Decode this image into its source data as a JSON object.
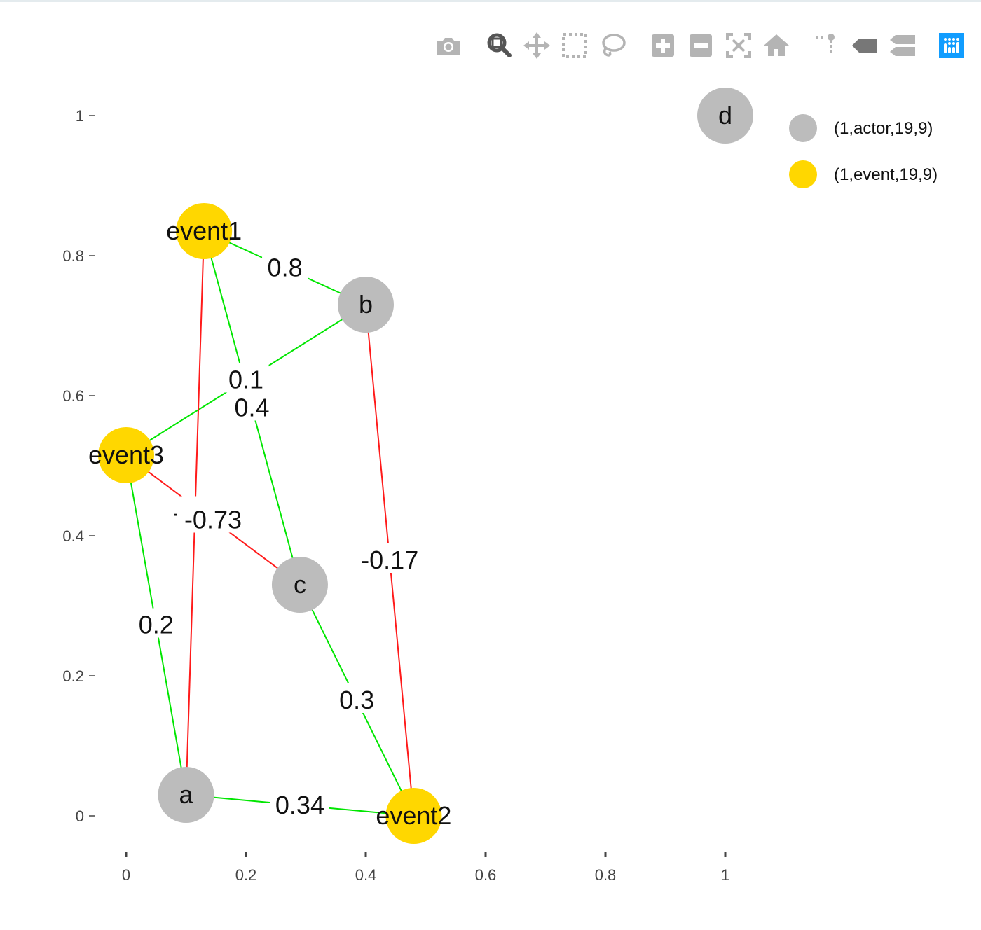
{
  "modebar": {
    "buttons": [
      {
        "name": "camera-icon"
      },
      {
        "name": "zoom-icon"
      },
      {
        "name": "pan-icon"
      },
      {
        "name": "box-select-icon"
      },
      {
        "name": "lasso-select-icon"
      },
      {
        "name": "zoom-in-icon"
      },
      {
        "name": "zoom-out-icon"
      },
      {
        "name": "autoscale-icon"
      },
      {
        "name": "home-icon"
      },
      {
        "name": "spike-lines-icon"
      },
      {
        "name": "hover-closest-icon"
      },
      {
        "name": "hover-compare-icon"
      },
      {
        "name": "plotly-logo-icon"
      }
    ]
  },
  "chart_data": {
    "type": "scatter",
    "title": "",
    "xlabel": "",
    "ylabel": "",
    "xlim": [
      -0.08,
      1.08
    ],
    "ylim": [
      -0.05,
      1.05
    ],
    "x_ticks": [
      0,
      0.2,
      0.4,
      0.6,
      0.8,
      1
    ],
    "x_tick_labels": [
      "0",
      "0.2",
      "0.4",
      "0.6",
      "0.8",
      "1"
    ],
    "y_ticks": [
      0,
      0.2,
      0.4,
      0.6,
      0.8,
      1
    ],
    "y_tick_labels": [
      "0",
      "0.2",
      "0.4",
      "0.6",
      "0.8",
      "1"
    ],
    "grid": false,
    "legend_position": "top-right",
    "colors": {
      "actor": "#bcbcbc",
      "event": "#ffd700",
      "positive_edge": "#00e600",
      "negative_edge": "#ff1a1a"
    },
    "series": [
      {
        "name": "(1,actor,19,9)",
        "color": "#bcbcbc"
      },
      {
        "name": "(1,event,19,9)",
        "color": "#ffd700"
      }
    ],
    "nodes": [
      {
        "id": "a",
        "label": "a",
        "group": "(1,actor,19,9)",
        "x": 0.1,
        "y": 0.03
      },
      {
        "id": "b",
        "label": "b",
        "group": "(1,actor,19,9)",
        "x": 0.4,
        "y": 0.73
      },
      {
        "id": "c",
        "label": "c",
        "group": "(1,actor,19,9)",
        "x": 0.29,
        "y": 0.33
      },
      {
        "id": "d",
        "label": "d",
        "group": "(1,actor,19,9)",
        "x": 1.0,
        "y": 1.0
      },
      {
        "id": "event1",
        "label": "event1",
        "group": "(1,event,19,9)",
        "x": 0.13,
        "y": 0.835
      },
      {
        "id": "event2",
        "label": "event2",
        "group": "(1,event,19,9)",
        "x": 0.48,
        "y": 0.0
      },
      {
        "id": "event3",
        "label": "event3",
        "group": "(1,event,19,9)",
        "x": 0.0,
        "y": 0.515
      }
    ],
    "edges": [
      {
        "source": "event1",
        "target": "b",
        "weight": "0.8",
        "sign": "positive"
      },
      {
        "source": "b",
        "target": "event3",
        "weight": "0.1",
        "sign": "positive"
      },
      {
        "source": "event1",
        "target": "c",
        "weight": "0.4",
        "sign": "positive"
      },
      {
        "source": "event1",
        "target": "a",
        "weight": "-0.2",
        "sign": "negative"
      },
      {
        "source": "event3",
        "target": "c",
        "weight": "-0.73",
        "sign": "negative"
      },
      {
        "source": "b",
        "target": "event2",
        "weight": "-0.17",
        "sign": "negative"
      },
      {
        "source": "event3",
        "target": "a",
        "weight": "0.2",
        "sign": "positive"
      },
      {
        "source": "c",
        "target": "event2",
        "weight": "0.3",
        "sign": "positive"
      },
      {
        "source": "a",
        "target": "event2",
        "weight": "0.34",
        "sign": "positive"
      }
    ]
  }
}
